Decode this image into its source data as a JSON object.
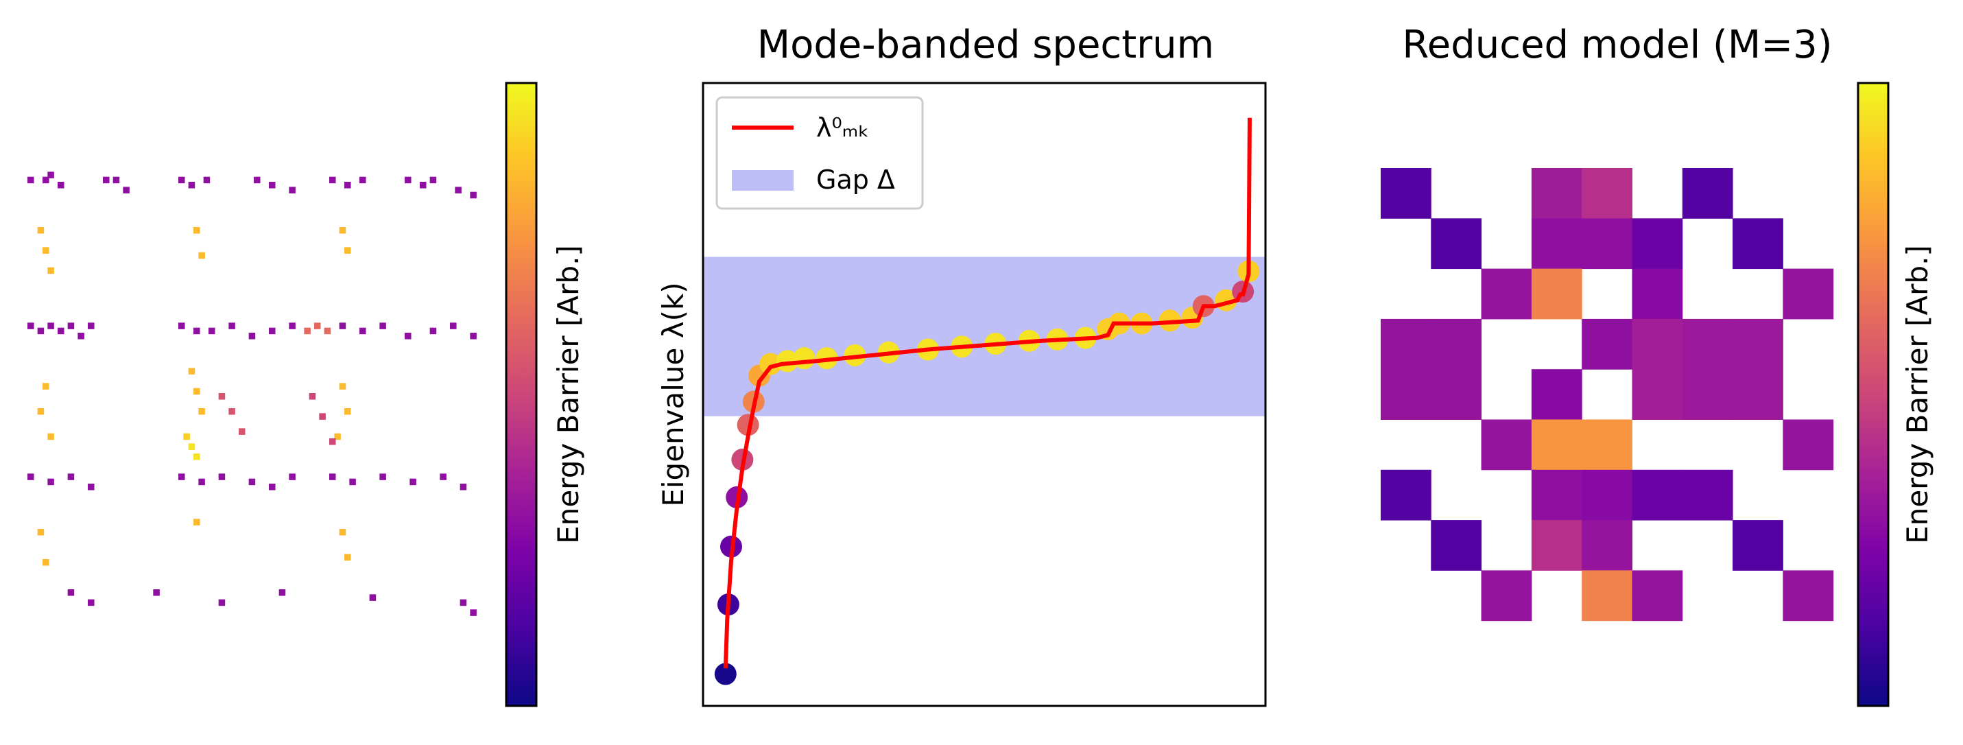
{
  "chart_data": [
    {
      "type": "heatmap",
      "title": "",
      "description_colorbar": "Energy Barrier [Arb.]",
      "colormap": "plasma",
      "grid": false,
      "colorbar_position": "right",
      "colorbar_label": "Energy Barrier [Arb.]",
      "n": 90,
      "cells": [
        [
          0,
          2,
          0.3
        ],
        [
          3,
          2,
          0.3
        ],
        [
          4,
          1,
          0.3
        ],
        [
          6,
          3,
          0.3
        ],
        [
          15,
          2,
          0.3
        ],
        [
          17,
          2,
          0.3
        ],
        [
          19,
          4,
          0.3
        ],
        [
          30,
          2,
          0.3
        ],
        [
          32,
          3,
          0.3
        ],
        [
          35,
          2,
          0.3
        ],
        [
          45,
          2,
          0.3
        ],
        [
          48,
          3,
          0.3
        ],
        [
          52,
          4,
          0.3
        ],
        [
          60,
          2,
          0.3
        ],
        [
          63,
          3,
          0.3
        ],
        [
          66,
          2,
          0.3
        ],
        [
          75,
          2,
          0.3
        ],
        [
          78,
          3,
          0.3
        ],
        [
          80,
          2,
          0.3
        ],
        [
          85,
          4,
          0.3
        ],
        [
          88,
          5,
          0.3
        ],
        [
          2,
          12,
          0.85
        ],
        [
          3,
          16,
          0.85
        ],
        [
          4,
          20,
          0.85
        ],
        [
          33,
          12,
          0.85
        ],
        [
          34,
          17,
          0.85
        ],
        [
          62,
          12,
          0.85
        ],
        [
          63,
          16,
          0.85
        ],
        [
          0,
          31,
          0.3
        ],
        [
          2,
          32,
          0.3
        ],
        [
          4,
          31,
          0.3
        ],
        [
          6,
          32,
          0.3
        ],
        [
          8,
          31,
          0.3
        ],
        [
          10,
          33,
          0.3
        ],
        [
          12,
          31,
          0.3
        ],
        [
          30,
          31,
          0.3
        ],
        [
          33,
          32,
          0.3
        ],
        [
          36,
          32,
          0.3
        ],
        [
          40,
          31,
          0.3
        ],
        [
          44,
          33,
          0.3
        ],
        [
          48,
          32,
          0.3
        ],
        [
          52,
          31,
          0.3
        ],
        [
          55,
          32,
          0.62
        ],
        [
          57,
          31,
          0.62
        ],
        [
          59,
          32,
          0.62
        ],
        [
          62,
          31,
          0.3
        ],
        [
          66,
          32,
          0.3
        ],
        [
          70,
          31,
          0.3
        ],
        [
          75,
          33,
          0.3
        ],
        [
          80,
          32,
          0.3
        ],
        [
          84,
          31,
          0.3
        ],
        [
          88,
          33,
          0.3
        ],
        [
          3,
          43,
          0.85
        ],
        [
          2,
          48,
          0.85
        ],
        [
          4,
          53,
          0.85
        ],
        [
          32,
          40,
          0.85
        ],
        [
          33,
          44,
          0.85
        ],
        [
          34,
          48,
          0.85
        ],
        [
          31,
          53,
          0.9
        ],
        [
          32,
          55,
          0.95
        ],
        [
          33,
          57,
          0.95
        ],
        [
          62,
          43,
          0.85
        ],
        [
          63,
          48,
          0.85
        ],
        [
          61,
          53,
          0.85
        ],
        [
          38,
          45,
          0.55
        ],
        [
          40,
          48,
          0.55
        ],
        [
          42,
          52,
          0.55
        ],
        [
          56,
          45,
          0.5
        ],
        [
          58,
          49,
          0.5
        ],
        [
          60,
          54,
          0.5
        ],
        [
          0,
          61,
          0.3
        ],
        [
          4,
          62,
          0.3
        ],
        [
          8,
          61,
          0.3
        ],
        [
          12,
          63,
          0.3
        ],
        [
          30,
          61,
          0.3
        ],
        [
          34,
          62,
          0.3
        ],
        [
          38,
          61,
          0.3
        ],
        [
          44,
          62,
          0.3
        ],
        [
          48,
          63,
          0.3
        ],
        [
          52,
          61,
          0.3
        ],
        [
          60,
          61,
          0.3
        ],
        [
          64,
          62,
          0.3
        ],
        [
          70,
          61,
          0.3
        ],
        [
          76,
          62,
          0.3
        ],
        [
          82,
          61,
          0.3
        ],
        [
          86,
          63,
          0.3
        ],
        [
          2,
          72,
          0.85
        ],
        [
          3,
          78,
          0.85
        ],
        [
          33,
          70,
          0.85
        ],
        [
          62,
          72,
          0.85
        ],
        [
          63,
          77,
          0.85
        ],
        [
          8,
          84,
          0.3
        ],
        [
          12,
          86,
          0.3
        ],
        [
          25,
          84,
          0.3
        ],
        [
          38,
          86,
          0.3
        ],
        [
          50,
          84,
          0.3
        ],
        [
          68,
          85,
          0.3
        ],
        [
          86,
          86,
          0.3
        ],
        [
          88,
          88,
          0.3
        ]
      ]
    },
    {
      "type": "line",
      "title": "Mode-banded spectrum",
      "ylabel": "Eigenvalue λ(k)",
      "xlabel": "",
      "xlim": [
        0,
        100
      ],
      "ylim": [
        -1.0,
        1.15
      ],
      "ticks": false,
      "legend_position": "upper-left",
      "gap_band": {
        "name": "Gap Δ",
        "y0": 0.0,
        "y1": 0.55,
        "color": "#bfbff7"
      },
      "series": [
        {
          "name": "λ⁰ₘₖ",
          "color": "#ff0000",
          "x": [
            4.0,
            4.3,
            5.0,
            6.0,
            7.0,
            8.0,
            9.0,
            10.0,
            12.0,
            14.0,
            20.0,
            30.0,
            40.0,
            50.0,
            60.0,
            70.0,
            72.0,
            73.0,
            75.0,
            80.0,
            88.0,
            89.0,
            91.0,
            95.0,
            95.5,
            96.0,
            97.0,
            97.2
          ],
          "y": [
            -0.87,
            -0.7,
            -0.5,
            -0.32,
            -0.18,
            -0.07,
            0.03,
            0.12,
            0.17,
            0.18,
            0.19,
            0.21,
            0.23,
            0.245,
            0.26,
            0.27,
            0.28,
            0.32,
            0.32,
            0.32,
            0.33,
            0.38,
            0.38,
            0.4,
            0.42,
            0.42,
            0.49,
            1.03
          ]
        }
      ],
      "scatter_colormap": "plasma",
      "scatter_x": [
        4.0,
        4.5,
        5.0,
        6.0,
        7.0,
        8.0,
        9.0,
        10.0,
        12.0,
        15.0,
        18.0,
        22.0,
        27.0,
        33.0,
        40.0,
        46.0,
        52.0,
        58.0,
        63.0,
        68.0,
        72.0,
        74.0,
        78.0,
        83.0,
        87.0,
        89.0,
        93.0,
        96.0,
        97.0
      ],
      "scatter_y": [
        -0.89,
        -0.65,
        -0.45,
        -0.28,
        -0.15,
        -0.03,
        0.05,
        0.14,
        0.18,
        0.19,
        0.2,
        0.2,
        0.21,
        0.22,
        0.23,
        0.24,
        0.25,
        0.26,
        0.265,
        0.27,
        0.3,
        0.32,
        0.32,
        0.33,
        0.34,
        0.38,
        0.4,
        0.43,
        0.5
      ],
      "scatter_c": [
        0.02,
        0.1,
        0.2,
        0.3,
        0.5,
        0.6,
        0.7,
        0.8,
        0.9,
        0.95,
        0.95,
        0.95,
        0.95,
        0.95,
        0.95,
        0.95,
        0.95,
        0.95,
        0.95,
        0.95,
        0.9,
        0.9,
        0.9,
        0.9,
        0.9,
        0.6,
        0.9,
        0.5,
        0.9
      ]
    },
    {
      "type": "heatmap",
      "title": "Reduced model (M=3)",
      "colormap": "plasma",
      "grid": false,
      "colorbar_position": "right",
      "colorbar_label": "Energy Barrier [Arb.]",
      "rows": 9,
      "cols": 9,
      "values": [
        [
          0.15,
          null,
          null,
          0.35,
          0.42,
          null,
          0.15,
          null,
          null
        ],
        [
          null,
          0.15,
          null,
          0.3,
          0.3,
          0.2,
          null,
          0.15,
          null
        ],
        [
          null,
          null,
          0.32,
          0.7,
          null,
          0.28,
          null,
          null,
          0.32
        ],
        [
          0.32,
          0.32,
          null,
          null,
          0.3,
          0.36,
          0.34,
          0.34,
          null
        ],
        [
          0.32,
          0.32,
          null,
          0.28,
          null,
          0.36,
          0.34,
          0.34,
          null
        ],
        [
          null,
          null,
          0.32,
          0.75,
          0.75,
          null,
          null,
          null,
          0.32
        ],
        [
          0.15,
          null,
          null,
          0.3,
          0.28,
          0.2,
          0.2,
          null,
          null
        ],
        [
          null,
          0.15,
          null,
          0.42,
          0.32,
          null,
          null,
          0.15,
          null
        ],
        [
          null,
          null,
          0.32,
          null,
          0.7,
          0.32,
          null,
          null,
          0.32
        ]
      ]
    }
  ],
  "labels": {
    "left_cbar": "Energy Barrier [Arb.]",
    "mid_title": "Mode-banded spectrum",
    "mid_ylabel": "Eigenvalue λ(k)",
    "legend_line": "λ⁰ₘₖ",
    "legend_gap": "Gap Δ",
    "right_title": "Reduced model (M=3)",
    "right_cbar": "Energy Barrier [Arb.]"
  }
}
